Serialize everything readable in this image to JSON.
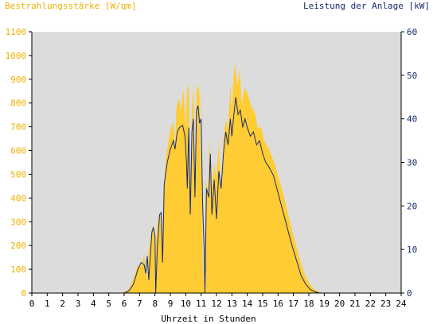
{
  "colors": {
    "background": "#ffffff",
    "plot_background": "#dcdcdc",
    "irradiance": "#ffcc33",
    "power": "#1a2a6c",
    "left_axis_text": "#f0b000",
    "right_axis_text": "#1a2a6c",
    "axis": "#000000"
  },
  "chart_data": {
    "type": "area",
    "left_axis_title": "Bestrahlungsstärke [W/qm]",
    "right_axis_title": "Leistung der Anlage [kW]",
    "xlabel": "Uhrzeit in Stunden",
    "xlim": [
      0,
      24
    ],
    "ylim_left": [
      0,
      1100
    ],
    "ylim_right": [
      0,
      60
    ],
    "x_ticks": [
      "0",
      "1",
      "2",
      "3",
      "4",
      "5",
      "6",
      "7",
      "8",
      "9",
      "10",
      "11",
      "12",
      "13",
      "14",
      "15",
      "16",
      "17",
      "18",
      "19",
      "20",
      "21",
      "22",
      "23",
      "24"
    ],
    "y_left_ticks": [
      "0",
      "100",
      "200",
      "300",
      "400",
      "500",
      "600",
      "700",
      "800",
      "900",
      "1000",
      "1100"
    ],
    "y_right_ticks": [
      "0",
      "10",
      "20",
      "30",
      "40",
      "50",
      "60"
    ],
    "grid": false,
    "series": [
      {
        "name": "Bestrahlungsstärke [W/qm]",
        "axis": "left",
        "kind": "area",
        "points": [
          [
            0,
            0
          ],
          [
            5.8,
            0
          ],
          [
            6.0,
            5
          ],
          [
            6.3,
            15
          ],
          [
            6.6,
            60
          ],
          [
            6.9,
            120
          ],
          [
            7.1,
            110
          ],
          [
            7.3,
            160
          ],
          [
            7.5,
            60
          ],
          [
            7.6,
            180
          ],
          [
            7.8,
            270
          ],
          [
            7.95,
            280
          ],
          [
            8.0,
            0
          ],
          [
            8.05,
            200
          ],
          [
            8.2,
            310
          ],
          [
            8.35,
            340
          ],
          [
            8.45,
            170
          ],
          [
            8.55,
            420
          ],
          [
            8.7,
            560
          ],
          [
            8.9,
            650
          ],
          [
            9.05,
            700
          ],
          [
            9.2,
            720
          ],
          [
            9.3,
            600
          ],
          [
            9.4,
            780
          ],
          [
            9.55,
            820
          ],
          [
            9.7,
            770
          ],
          [
            9.85,
            860
          ],
          [
            10.0,
            700
          ],
          [
            10.1,
            880
          ],
          [
            10.2,
            850
          ],
          [
            10.3,
            300
          ],
          [
            10.4,
            780
          ],
          [
            10.5,
            870
          ],
          [
            10.6,
            420
          ],
          [
            10.7,
            850
          ],
          [
            10.8,
            880
          ],
          [
            10.9,
            830
          ],
          [
            10.95,
            480
          ],
          [
            11.0,
            900
          ],
          [
            11.1,
            150
          ],
          [
            11.2,
            0
          ],
          [
            11.3,
            480
          ],
          [
            11.45,
            420
          ],
          [
            11.55,
            650
          ],
          [
            11.65,
            420
          ],
          [
            11.75,
            480
          ],
          [
            11.85,
            550
          ],
          [
            12.0,
            480
          ],
          [
            12.15,
            640
          ],
          [
            12.3,
            420
          ],
          [
            12.45,
            650
          ],
          [
            12.6,
            730
          ],
          [
            12.75,
            690
          ],
          [
            12.9,
            880
          ],
          [
            13.0,
            760
          ],
          [
            13.1,
            900
          ],
          [
            13.2,
            970
          ],
          [
            13.35,
            870
          ],
          [
            13.5,
            940
          ],
          [
            13.65,
            790
          ],
          [
            13.8,
            860
          ],
          [
            13.95,
            850
          ],
          [
            14.1,
            820
          ],
          [
            14.3,
            780
          ],
          [
            14.5,
            760
          ],
          [
            14.7,
            690
          ],
          [
            14.9,
            700
          ],
          [
            15.1,
            640
          ],
          [
            15.3,
            620
          ],
          [
            15.5,
            590
          ],
          [
            15.8,
            540
          ],
          [
            16.1,
            470
          ],
          [
            16.4,
            400
          ],
          [
            16.7,
            320
          ],
          [
            17.0,
            240
          ],
          [
            17.3,
            170
          ],
          [
            17.6,
            100
          ],
          [
            17.9,
            55
          ],
          [
            18.2,
            25
          ],
          [
            18.5,
            10
          ],
          [
            18.8,
            3
          ],
          [
            19.1,
            0
          ],
          [
            24,
            0
          ]
        ]
      },
      {
        "name": "Leistung der Anlage [kW]",
        "axis": "right",
        "kind": "line",
        "points": [
          [
            0,
            0
          ],
          [
            6.0,
            0
          ],
          [
            6.3,
            0.5
          ],
          [
            6.6,
            2.0
          ],
          [
            6.9,
            5.5
          ],
          [
            7.1,
            7.0
          ],
          [
            7.3,
            6.5
          ],
          [
            7.4,
            4.5
          ],
          [
            7.5,
            8.5
          ],
          [
            7.6,
            3.0
          ],
          [
            7.8,
            14.0
          ],
          [
            7.9,
            15.0
          ],
          [
            8.0,
            13.0
          ],
          [
            8.05,
            0
          ],
          [
            8.15,
            10.0
          ],
          [
            8.3,
            18.0
          ],
          [
            8.4,
            18.5
          ],
          [
            8.5,
            7.0
          ],
          [
            8.6,
            25.0
          ],
          [
            8.8,
            30.0
          ],
          [
            9.0,
            33.0
          ],
          [
            9.2,
            35.0
          ],
          [
            9.3,
            33.0
          ],
          [
            9.45,
            37.0
          ],
          [
            9.6,
            38.0
          ],
          [
            9.8,
            38.5
          ],
          [
            9.95,
            36.0
          ],
          [
            10.05,
            30.0
          ],
          [
            10.1,
            24.0
          ],
          [
            10.2,
            38.0
          ],
          [
            10.3,
            18.0
          ],
          [
            10.4,
            37.0
          ],
          [
            10.5,
            40.0
          ],
          [
            10.6,
            22.0
          ],
          [
            10.7,
            42.0
          ],
          [
            10.8,
            43.0
          ],
          [
            10.9,
            39.0
          ],
          [
            11.0,
            40.0
          ],
          [
            11.1,
            20.0
          ],
          [
            11.2,
            10.0
          ],
          [
            11.25,
            0
          ],
          [
            11.35,
            24.0
          ],
          [
            11.5,
            22.0
          ],
          [
            11.6,
            32.0
          ],
          [
            11.7,
            18.0
          ],
          [
            11.85,
            26.0
          ],
          [
            12.0,
            17.0
          ],
          [
            12.15,
            28.0
          ],
          [
            12.3,
            24.0
          ],
          [
            12.45,
            32.0
          ],
          [
            12.6,
            37.0
          ],
          [
            12.75,
            34.0
          ],
          [
            12.9,
            40.0
          ],
          [
            13.0,
            36.0
          ],
          [
            13.1,
            40.0
          ],
          [
            13.25,
            45.0
          ],
          [
            13.4,
            41.0
          ],
          [
            13.55,
            42.0
          ],
          [
            13.7,
            38.0
          ],
          [
            13.85,
            40.0
          ],
          [
            14.0,
            38.0
          ],
          [
            14.2,
            36.0
          ],
          [
            14.4,
            37.0
          ],
          [
            14.6,
            34.0
          ],
          [
            14.8,
            35.0
          ],
          [
            15.0,
            32.0
          ],
          [
            15.2,
            30.0
          ],
          [
            15.4,
            29.0
          ],
          [
            15.7,
            27.0
          ],
          [
            16.0,
            23.0
          ],
          [
            16.3,
            19.0
          ],
          [
            16.6,
            15.0
          ],
          [
            16.9,
            11.0
          ],
          [
            17.2,
            7.5
          ],
          [
            17.5,
            4.0
          ],
          [
            17.8,
            2.0
          ],
          [
            18.1,
            0.8
          ],
          [
            18.4,
            0.3
          ],
          [
            18.7,
            0
          ],
          [
            24,
            0
          ]
        ]
      }
    ]
  }
}
